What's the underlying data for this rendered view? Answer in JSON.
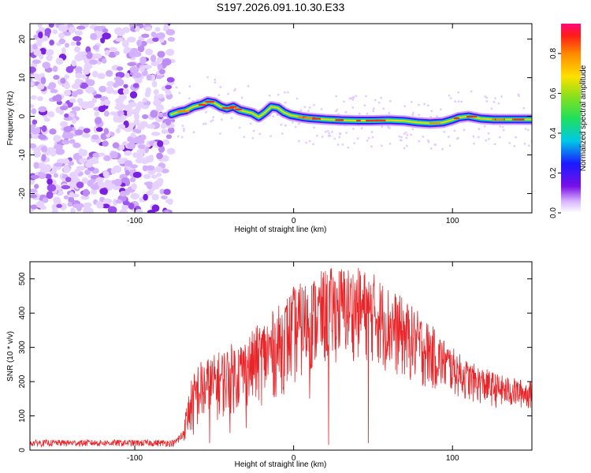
{
  "title": "S197.2026.091.10.30.E33",
  "colors": {
    "snr_line": "#e8262a",
    "axis": "#000000",
    "background": "#ffffff"
  },
  "chart_data": [
    {
      "type": "heatmap",
      "name": "spectrogram",
      "title": "S197.2026.091.10.30.E33",
      "xlabel": "Height of straight line (km)",
      "ylabel": "Frequency (Hz)",
      "xlim": [
        -166,
        150
      ],
      "ylim": [
        -25,
        24
      ],
      "x_ticks": [
        -100,
        0,
        100
      ],
      "y_ticks": [
        -20,
        -10,
        0,
        10,
        20
      ],
      "noise_region_x": [
        -166,
        -77
      ],
      "ridge": {
        "x": [
          -77,
          -72,
          -68,
          -63,
          -58,
          -54,
          -50,
          -46,
          -42,
          -38,
          -34,
          -30,
          -26,
          -22,
          -18,
          -14,
          -10,
          -6,
          -2,
          2,
          6,
          10,
          20,
          30,
          40,
          50,
          60,
          70,
          78,
          86,
          94,
          100,
          104,
          110,
          118,
          126,
          134,
          142,
          150
        ],
        "y": [
          0.5,
          1.2,
          1.5,
          2.5,
          3.0,
          3.8,
          3.5,
          2.5,
          2.0,
          2.5,
          1.6,
          1.2,
          0.8,
          -0.2,
          1.0,
          2.5,
          2.2,
          1.0,
          0.3,
          0.0,
          -0.3,
          -0.5,
          -0.8,
          -1.0,
          -1.1,
          -1.1,
          -1.0,
          -1.2,
          -1.6,
          -1.8,
          -1.6,
          -0.9,
          -0.3,
          0.0,
          -0.6,
          -0.8,
          -0.8,
          -0.8,
          -0.8
        ]
      },
      "colorbar": {
        "label": "Normalized spectral amplitude",
        "range": [
          0,
          0.95
        ],
        "ticks": [
          0.0,
          0.2,
          0.4,
          0.6,
          0.8
        ]
      }
    },
    {
      "type": "line",
      "name": "snr",
      "xlabel": "Height of straight line (km)",
      "ylabel": "SNR (10 * v/v)",
      "xlim": [
        -166,
        150
      ],
      "ylim": [
        0,
        550
      ],
      "x_ticks": [
        -100,
        0,
        100
      ],
      "y_ticks": [
        0,
        100,
        200,
        300,
        400,
        500
      ],
      "envelope": {
        "x": [
          -166,
          -120,
          -75,
          -70,
          -65,
          -60,
          -50,
          -40,
          -30,
          -20,
          -10,
          0,
          10,
          20,
          30,
          40,
          50,
          60,
          70,
          80,
          90,
          100,
          110,
          120,
          130,
          140,
          150
        ],
        "lower": [
          10,
          10,
          10,
          20,
          40,
          60,
          80,
          100,
          120,
          130,
          150,
          180,
          220,
          240,
          260,
          260,
          250,
          220,
          200,
          180,
          170,
          160,
          140,
          130,
          120,
          120,
          120
        ],
        "upper": [
          30,
          30,
          30,
          60,
          200,
          260,
          280,
          310,
          330,
          380,
          420,
          480,
          500,
          530,
          540,
          535,
          520,
          480,
          440,
          400,
          350,
          300,
          260,
          240,
          220,
          210,
          200
        ]
      },
      "spike_min_points": [
        [
          -63,
          45
        ],
        [
          -53,
          20
        ],
        [
          -40,
          50
        ],
        [
          -30,
          65
        ],
        [
          10,
          150
        ],
        [
          22,
          15
        ],
        [
          47,
          20
        ]
      ]
    }
  ]
}
